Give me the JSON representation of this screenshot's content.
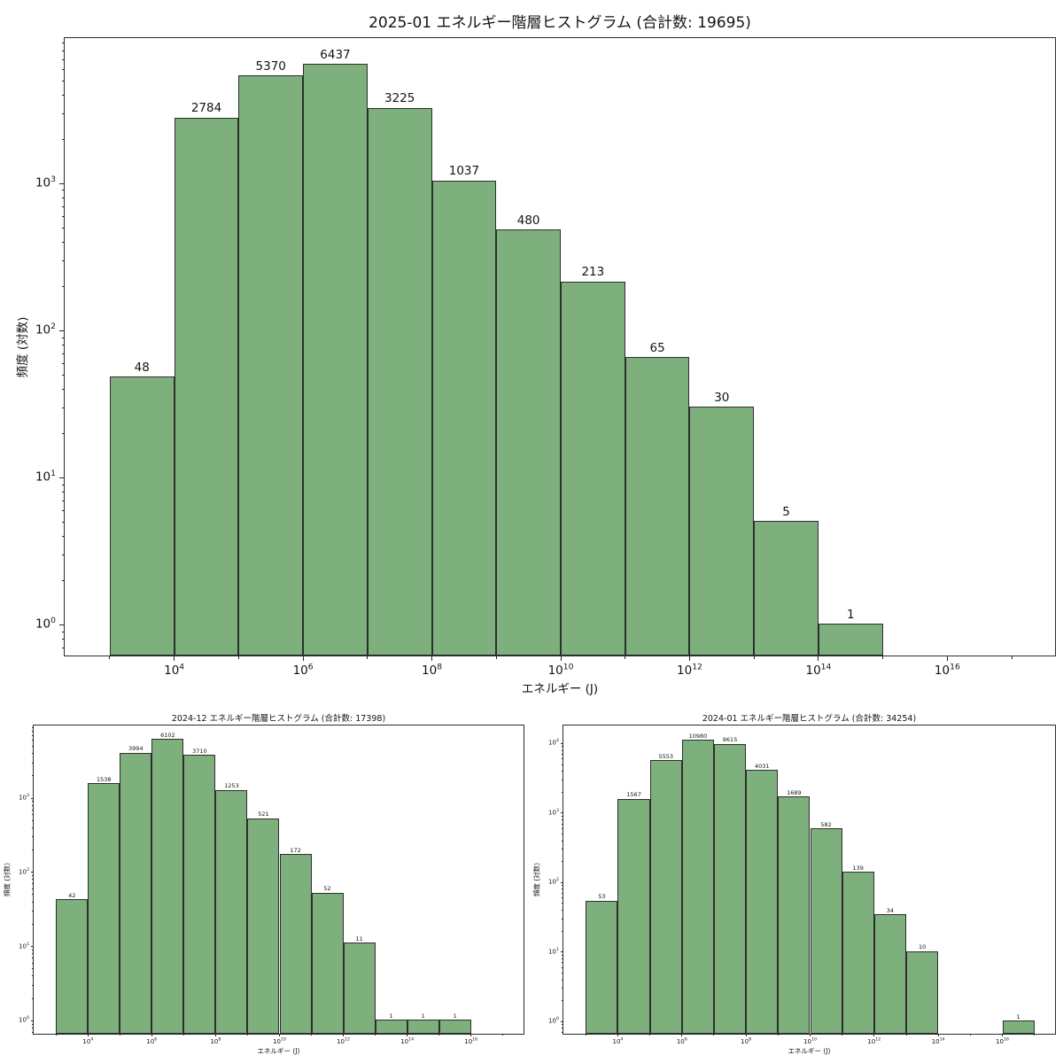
{
  "figure": {
    "background": "#ffffff",
    "bar_fill": "#7db07c",
    "bar_edge": "#2e2e2e",
    "spine_color": "#2b2b2b",
    "text_color": "#141414"
  },
  "chart_data": [
    {
      "type": "bar",
      "title": "2025-01 エネルギー階層ヒストグラム (合計数: 19695)",
      "total_label": "19695",
      "xlabel": "エネルギー (J)",
      "ylabel": "頻度 (対数)",
      "xscale": "log",
      "yscale": "log",
      "grid": false,
      "legend": "none",
      "bin_start_exp": 3,
      "bin_edges_exp": [
        3,
        4,
        5,
        6,
        7,
        8,
        9,
        10,
        11,
        12,
        13,
        14,
        15,
        16,
        17
      ],
      "values": [
        48,
        2784,
        5370,
        6437,
        3225,
        1037,
        480,
        213,
        65,
        30,
        5,
        1,
        0,
        0
      ],
      "bar_value_labels": [
        "48",
        "2784",
        "5370",
        "6437",
        "3225",
        "1037",
        "480",
        "213",
        "65",
        "30",
        "5",
        "1"
      ],
      "xlim_exp": [
        2.3,
        17.7
      ],
      "ylim_exp": [
        -0.22,
        3.99
      ],
      "x_major_ticks_exp": [
        4,
        6,
        8,
        10,
        12,
        14,
        16
      ],
      "x_major_tick_labels": [
        "10⁴",
        "10⁶",
        "10⁸",
        "10¹⁰",
        "10¹²",
        "10¹⁴",
        "10¹⁶"
      ],
      "y_major_ticks_exp": [
        0,
        1,
        2,
        3
      ],
      "y_major_tick_labels": [
        "10⁰",
        "10¹",
        "10²",
        "10³"
      ]
    },
    {
      "type": "bar",
      "title": "2024-12 エネルギー階層ヒストグラム (合計数: 17398)",
      "total_label": "17398",
      "xlabel": "エネルギー (J)",
      "ylabel": "頻度 (対数)",
      "xscale": "log",
      "yscale": "log",
      "grid": false,
      "legend": "none",
      "bin_start_exp": 3,
      "bin_edges_exp": [
        3,
        4,
        5,
        6,
        7,
        8,
        9,
        10,
        11,
        12,
        13,
        14,
        15,
        16,
        17
      ],
      "values": [
        42,
        1538,
        3994,
        6102,
        3710,
        1253,
        521,
        172,
        52,
        11,
        1,
        1,
        1,
        0
      ],
      "bar_value_labels": [
        "42",
        "1538",
        "3994",
        "6102",
        "3710",
        "1253",
        "521",
        "172",
        "52",
        "11",
        "1",
        "1",
        "1"
      ],
      "xlim_exp": [
        2.3,
        17.7
      ],
      "ylim_exp": [
        -0.2,
        3.98
      ],
      "x_major_ticks_exp": [
        4,
        6,
        8,
        10,
        12,
        14,
        16
      ],
      "x_major_tick_labels": [
        "10⁴",
        "10⁶",
        "10⁸",
        "10¹⁰",
        "10¹²",
        "10¹⁴",
        "10¹⁶"
      ],
      "y_major_ticks_exp": [
        0,
        1,
        2,
        3
      ],
      "y_major_tick_labels": [
        "10⁰",
        "10¹",
        "10²",
        "10³"
      ]
    },
    {
      "type": "bar",
      "title": "2024-01 エネルギー階層ヒストグラム (合計数: 34254)",
      "total_label": "34254",
      "xlabel": "エネルギー (J)",
      "ylabel": "頻度 (対数)",
      "xscale": "log",
      "yscale": "log",
      "grid": false,
      "legend": "none",
      "bin_start_exp": 3,
      "bin_edges_exp": [
        3,
        4,
        5,
        6,
        7,
        8,
        9,
        10,
        11,
        12,
        13,
        14,
        15,
        16,
        17
      ],
      "values": [
        53,
        1567,
        5553,
        10980,
        9615,
        4031,
        1689,
        582,
        139,
        34,
        10,
        0,
        0,
        1
      ],
      "bar_value_labels": [
        "53",
        "1567",
        "5553",
        "10980",
        "9615",
        "4031",
        "1689",
        "582",
        "139",
        "34",
        "10",
        "1"
      ],
      "xlim_exp": [
        2.3,
        17.7
      ],
      "ylim_exp": [
        -0.2,
        4.26
      ],
      "x_major_ticks_exp": [
        4,
        6,
        8,
        10,
        12,
        14,
        16
      ],
      "x_major_tick_labels": [
        "10⁴",
        "10⁶",
        "10⁸",
        "10¹⁰",
        "10¹²",
        "10¹⁴",
        "10¹⁶"
      ],
      "y_major_ticks_exp": [
        0,
        1,
        2,
        3,
        4
      ],
      "y_major_tick_labels": [
        "10⁰",
        "10¹",
        "10²",
        "10³",
        "10⁴"
      ]
    }
  ]
}
